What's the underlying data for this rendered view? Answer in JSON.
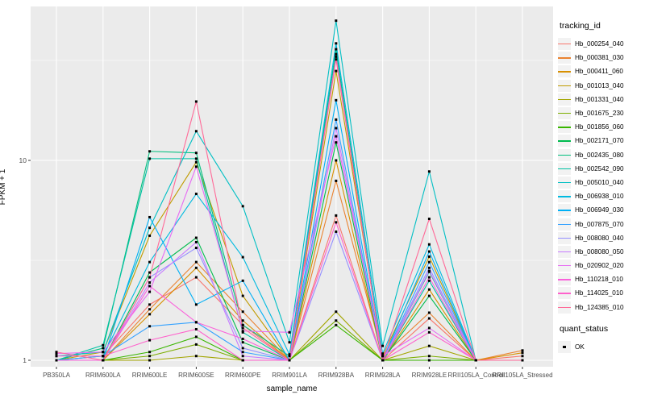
{
  "figure": {
    "background": "#ffffff",
    "panel_background": "#ebebeb",
    "grid_color": "#ffffff",
    "tick_text_color": "#4d4d4d",
    "point_color": "#000000"
  },
  "chart_data": {
    "type": "line",
    "title": "",
    "xlabel": "sample_name",
    "ylabel": "FPKM + 1",
    "y_scale": "log10",
    "y_ticks": [
      {
        "value": 1,
        "label": "1"
      },
      {
        "value": 10,
        "label": "10"
      }
    ],
    "y_minor_ticks": [
      3.162,
      31.623
    ],
    "ylim": [
      0.93,
      59
    ],
    "grid": true,
    "legend_position": "right",
    "legend_title": "tracking_id",
    "points_legend": {
      "title": "quant_status",
      "label": "OK",
      "shape": "filled-square"
    },
    "categories": [
      "PB350LA",
      "RRIM600LA",
      "RRIM600LE",
      "RRIM600SE",
      "RRIM600PE",
      "RRIM901LA",
      "RRIM928BA",
      "RRIM928LA",
      "RRIM928LE",
      "RRII105LA_Control",
      "RRII105LA_Stressed"
    ],
    "series": [
      {
        "name": "Hb_000254_040",
        "color": "#F8766D",
        "values": [
          1.0,
          1.05,
          1.9,
          2.6,
          1.5,
          1.0,
          5.3,
          1.0,
          1.62,
          1.0,
          1.05
        ]
      },
      {
        "name": "Hb_000381_030",
        "color": "#EA8331",
        "values": [
          1.0,
          1.0,
          1.8,
          3.1,
          1.75,
          1.0,
          7.9,
          1.05,
          1.73,
          1.0,
          1.12
        ]
      },
      {
        "name": "Hb_000411_060",
        "color": "#D89000",
        "values": [
          1.0,
          1.0,
          1.7,
          2.9,
          1.58,
          1.0,
          10.0,
          1.0,
          2.26,
          1.0,
          1.09
        ]
      },
      {
        "name": "Hb_001013_040",
        "color": "#C09B00",
        "values": [
          1.0,
          1.1,
          4.2,
          9.8,
          2.1,
          1.0,
          28.0,
          1.05,
          3.3,
          1.0,
          1.0
        ]
      },
      {
        "name": "Hb_001331_040",
        "color": "#A3A500",
        "values": [
          1.0,
          1.0,
          1.0,
          1.05,
          1.0,
          1.0,
          1.75,
          1.0,
          1.18,
          1.0,
          1.0
        ]
      },
      {
        "name": "Hb_001675_230",
        "color": "#7CAE00",
        "values": [
          1.0,
          1.0,
          1.05,
          1.2,
          1.0,
          1.0,
          1.58,
          1.0,
          1.05,
          1.0,
          1.0
        ]
      },
      {
        "name": "Hb_001856_060",
        "color": "#39B600",
        "values": [
          1.0,
          1.0,
          1.1,
          1.31,
          1.0,
          1.0,
          1.5,
          1.0,
          1.0,
          1.0,
          1.0
        ]
      },
      {
        "name": "Hb_002171_070",
        "color": "#00BB4E",
        "values": [
          1.0,
          1.0,
          2.75,
          4.1,
          1.23,
          1.0,
          12.3,
          1.0,
          2.1,
          1.0,
          1.0
        ]
      },
      {
        "name": "Hb_002435_080",
        "color": "#00BF7D",
        "values": [
          1.0,
          1.15,
          11.1,
          10.9,
          1.5,
          1.05,
          36.0,
          1.0,
          2.77,
          1.0,
          1.0
        ]
      },
      {
        "name": "Hb_002542_090",
        "color": "#00C1A3",
        "values": [
          1.0,
          1.19,
          10.2,
          10.2,
          1.38,
          1.0,
          34.0,
          1.0,
          2.5,
          1.0,
          1.0
        ]
      },
      {
        "name": "Hb_005010_040",
        "color": "#00BFC4",
        "values": [
          1.05,
          1.1,
          4.6,
          14.0,
          5.9,
          1.23,
          50.0,
          1.18,
          8.8,
          1.0,
          1.0
        ]
      },
      {
        "name": "Hb_006938_010",
        "color": "#00BAE0",
        "values": [
          1.0,
          1.05,
          3.1,
          6.8,
          3.28,
          1.07,
          38.5,
          1.08,
          3.8,
          1.0,
          1.0
        ]
      },
      {
        "name": "Hb_006949_030",
        "color": "#00B0F6",
        "values": [
          1.0,
          1.0,
          5.2,
          1.9,
          2.5,
          1.0,
          20.0,
          1.0,
          3.5,
          1.0,
          1.0
        ]
      },
      {
        "name": "Hb_007875_070",
        "color": "#35A2FF",
        "values": [
          1.0,
          1.05,
          1.48,
          1.55,
          1.1,
          1.0,
          16.0,
          1.0,
          3.1,
          1.0,
          1.0
        ]
      },
      {
        "name": "Hb_008080_040",
        "color": "#9590FF",
        "values": [
          1.0,
          1.0,
          2.6,
          3.65,
          1.15,
          1.0,
          4.4,
          1.0,
          2.9,
          1.0,
          1.0
        ]
      },
      {
        "name": "Hb_008080_050",
        "color": "#C77CFF",
        "values": [
          1.0,
          1.0,
          2.45,
          3.9,
          1.05,
          1.0,
          14.5,
          1.0,
          2.8,
          1.0,
          1.0
        ]
      },
      {
        "name": "Hb_020902_020",
        "color": "#E76BF3",
        "values": [
          1.08,
          1.1,
          2.2,
          9.3,
          1.4,
          1.38,
          13.2,
          1.05,
          1.45,
          1.0,
          1.0
        ]
      },
      {
        "name": "Hb_110218_010",
        "color": "#FA62DB",
        "values": [
          1.0,
          1.0,
          2.35,
          1.55,
          1.28,
          1.0,
          33.0,
          1.0,
          2.6,
          1.0,
          1.0
        ]
      },
      {
        "name": "Hb_114025_010",
        "color": "#FF61CC",
        "values": [
          1.05,
          1.05,
          1.26,
          1.43,
          1.0,
          1.0,
          4.9,
          1.0,
          1.38,
          1.0,
          1.0
        ]
      },
      {
        "name": "Hb_124385_010",
        "color": "#FF6A98",
        "values": [
          1.1,
          1.0,
          2.6,
          19.7,
          1.45,
          1.0,
          32.0,
          1.0,
          5.1,
          1.0,
          1.0
        ]
      }
    ]
  }
}
